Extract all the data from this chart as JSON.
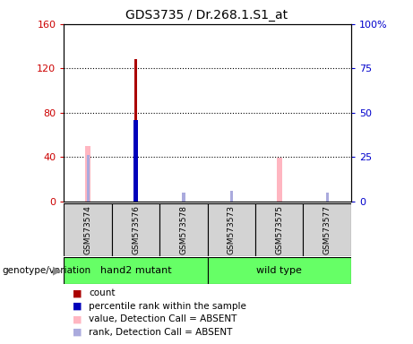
{
  "title": "GDS3735 / Dr.268.1.S1_at",
  "samples": [
    "GSM573574",
    "GSM573576",
    "GSM573578",
    "GSM573573",
    "GSM573575",
    "GSM573577"
  ],
  "count_values": [
    null,
    128,
    null,
    null,
    null,
    null
  ],
  "count_color": "#AA0000",
  "percentile_rank_values": [
    null,
    46,
    null,
    null,
    null,
    null
  ],
  "percentile_rank_color": "#0000BB",
  "absent_value_values": [
    50,
    null,
    null,
    null,
    39,
    null
  ],
  "absent_value_color": "#FFB6C1",
  "absent_rank_values": [
    26,
    null,
    5,
    6,
    null,
    5
  ],
  "absent_rank_color": "#AAAADD",
  "ylim_left": [
    0,
    160
  ],
  "ylim_right": [
    0,
    100
  ],
  "yticks_left": [
    0,
    40,
    80,
    120,
    160
  ],
  "ytick_labels_left": [
    "0",
    "40",
    "80",
    "120",
    "160"
  ],
  "yticks_right": [
    0,
    25,
    50,
    75,
    100
  ],
  "ytick_labels_right": [
    "0",
    "25",
    "50",
    "75",
    "100%"
  ],
  "left_axis_color": "#CC0000",
  "right_axis_color": "#0000CC",
  "group_label_prefix": "genotype/variation",
  "group1_label": "hand2 mutant",
  "group2_label": "wild type",
  "group_color": "#66FF66",
  "legend_items": [
    {
      "label": "count",
      "color": "#AA0000"
    },
    {
      "label": "percentile rank within the sample",
      "color": "#0000BB"
    },
    {
      "label": "value, Detection Call = ABSENT",
      "color": "#FFB6C1"
    },
    {
      "label": "rank, Detection Call = ABSENT",
      "color": "#AAAADD"
    }
  ]
}
